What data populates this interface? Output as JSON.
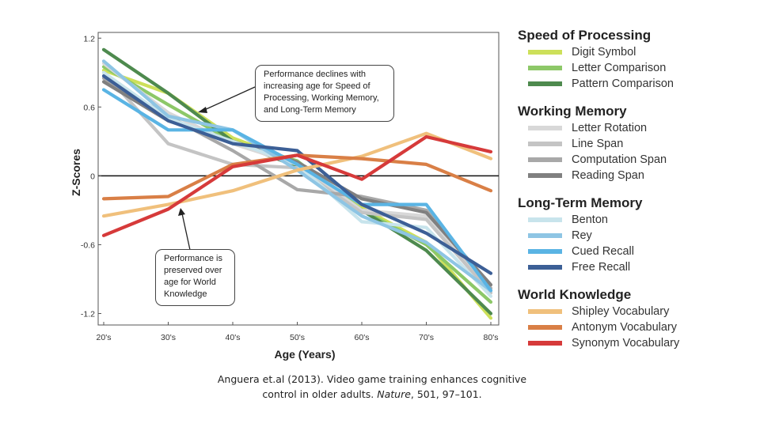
{
  "chart_data": {
    "type": "line",
    "xlabel": "Age (Years)",
    "ylabel": "Z-Scores",
    "categories": [
      "20's",
      "30's",
      "40's",
      "50's",
      "60's",
      "70's",
      "80's"
    ],
    "ylim": [
      -1.3,
      1.25
    ],
    "yticks": [
      "1.2",
      "0.6",
      "0",
      "-0.6",
      "-1.2"
    ],
    "ytick_values": [
      1.2,
      0.6,
      0,
      -0.6,
      -1.2
    ],
    "zero_line": true,
    "groups": [
      {
        "title": "Speed of Processing",
        "series": [
          {
            "name": "Digit Symbol",
            "color": "#cde05a",
            "values": [
              0.92,
              0.72,
              0.33,
              0.12,
              -0.28,
              -0.58,
              -1.24
            ]
          },
          {
            "name": "Letter Comparison",
            "color": "#8dc868",
            "values": [
              0.95,
              0.62,
              0.3,
              0.13,
              -0.3,
              -0.6,
              -1.1
            ]
          },
          {
            "name": "Pattern Comparison",
            "color": "#4e8a4e",
            "values": [
              1.1,
              0.72,
              0.3,
              0.08,
              -0.3,
              -0.65,
              -1.2
            ]
          }
        ]
      },
      {
        "title": "Working Memory",
        "series": [
          {
            "name": "Letter Rotation",
            "color": "#d8d8d8",
            "values": [
              0.98,
              0.55,
              0.28,
              0.1,
              -0.3,
              -0.35,
              -1.0
            ]
          },
          {
            "name": "Line Span",
            "color": "#c4c4c4",
            "values": [
              0.9,
              0.28,
              0.1,
              0.07,
              -0.32,
              -0.38,
              -1.02
            ]
          },
          {
            "name": "Computation Span",
            "color": "#a8a8a8",
            "values": [
              0.85,
              0.52,
              0.22,
              -0.12,
              -0.18,
              -0.3,
              -0.98
            ]
          },
          {
            "name": "Reading Span",
            "color": "#808080",
            "values": [
              0.82,
              0.48,
              0.3,
              0.12,
              -0.2,
              -0.32,
              -0.95
            ]
          }
        ]
      },
      {
        "title": "Long-Term Memory",
        "series": [
          {
            "name": "Benton",
            "color": "#c8e4ec",
            "values": [
              0.9,
              0.5,
              0.3,
              0.1,
              -0.4,
              -0.45,
              -1.05
            ]
          },
          {
            "name": "Rey",
            "color": "#8ec5e4",
            "values": [
              1.0,
              0.52,
              0.4,
              0.05,
              -0.35,
              -0.58,
              -1.0
            ]
          },
          {
            "name": "Cued Recall",
            "color": "#5ab4e4",
            "values": [
              0.75,
              0.4,
              0.4,
              0.1,
              -0.25,
              -0.25,
              -1.0
            ]
          },
          {
            "name": "Free Recall",
            "color": "#3c5f96",
            "values": [
              0.87,
              0.48,
              0.28,
              0.22,
              -0.25,
              -0.5,
              -0.85
            ]
          }
        ]
      },
      {
        "title": "World Knowledge",
        "series": [
          {
            "name": "Shipley Vocabulary",
            "color": "#f0c07c",
            "values": [
              -0.35,
              -0.25,
              -0.13,
              0.05,
              0.17,
              0.37,
              0.15
            ]
          },
          {
            "name": "Antonym Vocabulary",
            "color": "#d97f46",
            "values": [
              -0.2,
              -0.18,
              0.1,
              0.18,
              0.15,
              0.1,
              -0.13
            ]
          },
          {
            "name": "Synonym Vocabulary",
            "color": "#d63a3a",
            "values": [
              -0.52,
              -0.29,
              0.08,
              0.18,
              -0.03,
              0.34,
              0.21
            ]
          }
        ]
      }
    ],
    "annotations": {
      "top_lines": [
        "Performance declines with",
        "increasing age for Speed of",
        "Processing, Working Memory,",
        "and Long-Term Memory"
      ],
      "bottom_lines": [
        "Performance is",
        "preserved over",
        "age for World",
        "Knowledge"
      ]
    }
  },
  "caption": {
    "line1": "Anguera et.al (2013). Video game training enhances cognitive",
    "line2_prefix": "control in older adults. ",
    "line2_journal": "Nature",
    "line2_suffix": ", 501, 97–101."
  }
}
